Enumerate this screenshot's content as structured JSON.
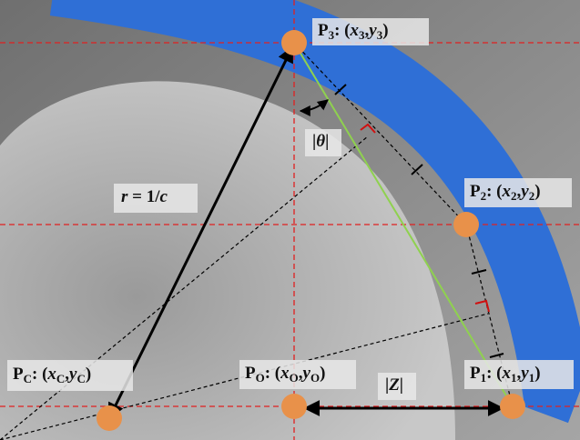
{
  "points": [
    {
      "label": [
        "P",
        "3",
        ": (",
        "x",
        "3",
        ",",
        "y",
        "3",
        ")"
      ]
    },
    {
      "label": [
        "P",
        "2",
        ": (",
        "x",
        "2",
        ",",
        "y",
        "2",
        ")"
      ]
    },
    {
      "label": [
        "P",
        "1",
        ": (",
        "x",
        "1",
        ",",
        "y",
        "1",
        ")"
      ]
    },
    {
      "label": [
        "P",
        "O",
        ": (",
        "x",
        "O",
        ",",
        "y",
        "O",
        ")"
      ]
    },
    {
      "label": [
        "P",
        "C",
        ": (",
        "x",
        "C",
        ",",
        "y",
        "C",
        ")"
      ]
    }
  ],
  "annotations": {
    "radius": [
      "r",
      " = 1/",
      "c"
    ],
    "angle": [
      "|",
      "θ",
      "|"
    ],
    "distance": [
      "|",
      "Z",
      "|"
    ]
  }
}
